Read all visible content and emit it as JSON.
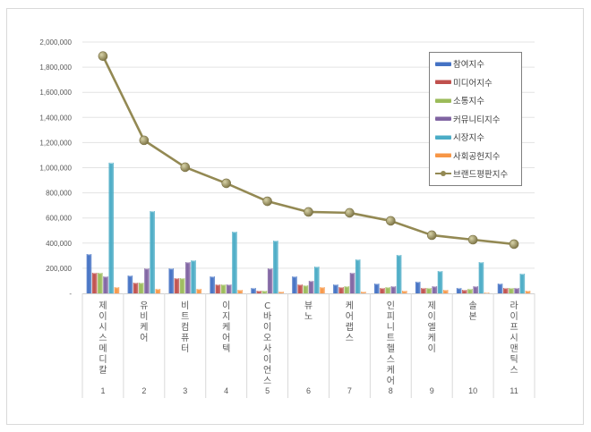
{
  "chart_data": {
    "type": "bar",
    "title": "",
    "xlabel": "",
    "ylabel": "",
    "ylim": [
      0,
      2000000
    ],
    "yticks": [
      "-",
      "200,000",
      "400,000",
      "600,000",
      "800,000",
      "1,000,000",
      "1,200,000",
      "1,400,000",
      "1,600,000",
      "1,800,000",
      "2,000,000"
    ],
    "grid": true,
    "legend_position": "upper-right-inside",
    "categories": [
      "제이시스메디칼",
      "유비케어",
      "비트컴퓨터",
      "이지케어텍",
      "C바이오사이언스",
      "뷰노",
      "케어랩스",
      "인피니트헬스케어",
      "제이엘케이",
      "솔본",
      "라이프시맨틱스"
    ],
    "category_numbers": [
      "1",
      "2",
      "3",
      "4",
      "5",
      "6",
      "7",
      "8",
      "9",
      "10",
      "11"
    ],
    "series": [
      {
        "name": "참여지수",
        "type": "bar",
        "color": "#4472c4",
        "values": [
          313000,
          142000,
          199000,
          135000,
          43000,
          135000,
          71000,
          78000,
          93000,
          43000,
          78000
        ]
      },
      {
        "name": "미디어지수",
        "type": "bar",
        "color": "#c0504d",
        "values": [
          164000,
          85000,
          121000,
          71000,
          21000,
          71000,
          50000,
          43000,
          43000,
          28000,
          43000
        ]
      },
      {
        "name": "소통지수",
        "type": "bar",
        "color": "#9bbb59",
        "values": [
          164000,
          85000,
          121000,
          71000,
          21000,
          64000,
          57000,
          50000,
          43000,
          36000,
          43000
        ]
      },
      {
        "name": "커뮤니티지수",
        "type": "bar",
        "color": "#8064a2",
        "values": [
          135000,
          199000,
          249000,
          71000,
          199000,
          100000,
          164000,
          57000,
          57000,
          57000,
          43000
        ]
      },
      {
        "name": "시장지수",
        "type": "bar",
        "color": "#4bacc6",
        "values": [
          1040000,
          655000,
          263000,
          491000,
          420000,
          213000,
          270000,
          306000,
          178000,
          249000,
          157000
        ]
      },
      {
        "name": "사회공헌지수",
        "type": "bar",
        "color": "#f79646",
        "values": [
          50000,
          36000,
          36000,
          28000,
          14000,
          50000,
          14000,
          21000,
          28000,
          7000,
          21000
        ]
      },
      {
        "name": "브랜드평판지수",
        "type": "line",
        "color": "#938953",
        "values": [
          1888000,
          1218000,
          1004000,
          876000,
          733000,
          648000,
          641000,
          577000,
          463000,
          427000,
          392000
        ]
      }
    ]
  }
}
